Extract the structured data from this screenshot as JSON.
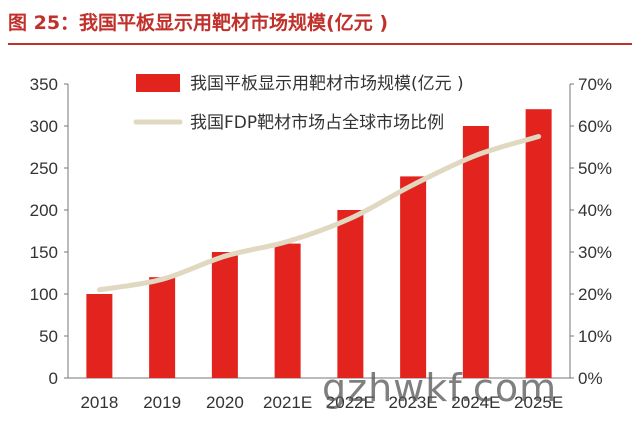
{
  "figure": {
    "title": "图 25：我国平板显示用靶材市场规模(亿元 )",
    "title_color": "#c0312b"
  },
  "chart_data": {
    "type": "bar+line",
    "categories": [
      "2018",
      "2019",
      "2020",
      "2021E",
      "2022E",
      "2023E",
      "2024E",
      "2025E"
    ],
    "series": [
      {
        "name": "我国平板显示用靶材市场规模(亿元 )",
        "type": "bar",
        "axis": "left",
        "values": [
          100,
          120,
          150,
          160,
          200,
          240,
          300,
          320
        ],
        "color": "#e3231e"
      },
      {
        "name": "我国FDP靶材市场占全球市场比例",
        "type": "line",
        "axis": "right",
        "values": [
          0.21,
          0.235,
          0.29,
          0.325,
          0.38,
          0.46,
          0.53,
          0.575
        ],
        "color": "#e0d8c0"
      }
    ],
    "y_left": {
      "min": 0,
      "max": 350,
      "ticks": [
        "0",
        "50",
        "100",
        "150",
        "200",
        "250",
        "300",
        "350"
      ]
    },
    "y_right": {
      "min": 0,
      "max": 0.7,
      "ticks": [
        "0%",
        "10%",
        "20%",
        "30%",
        "40%",
        "50%",
        "60%",
        "70%"
      ]
    },
    "legend": "top-center",
    "grid": false
  },
  "watermark": "gzhwkf.com"
}
